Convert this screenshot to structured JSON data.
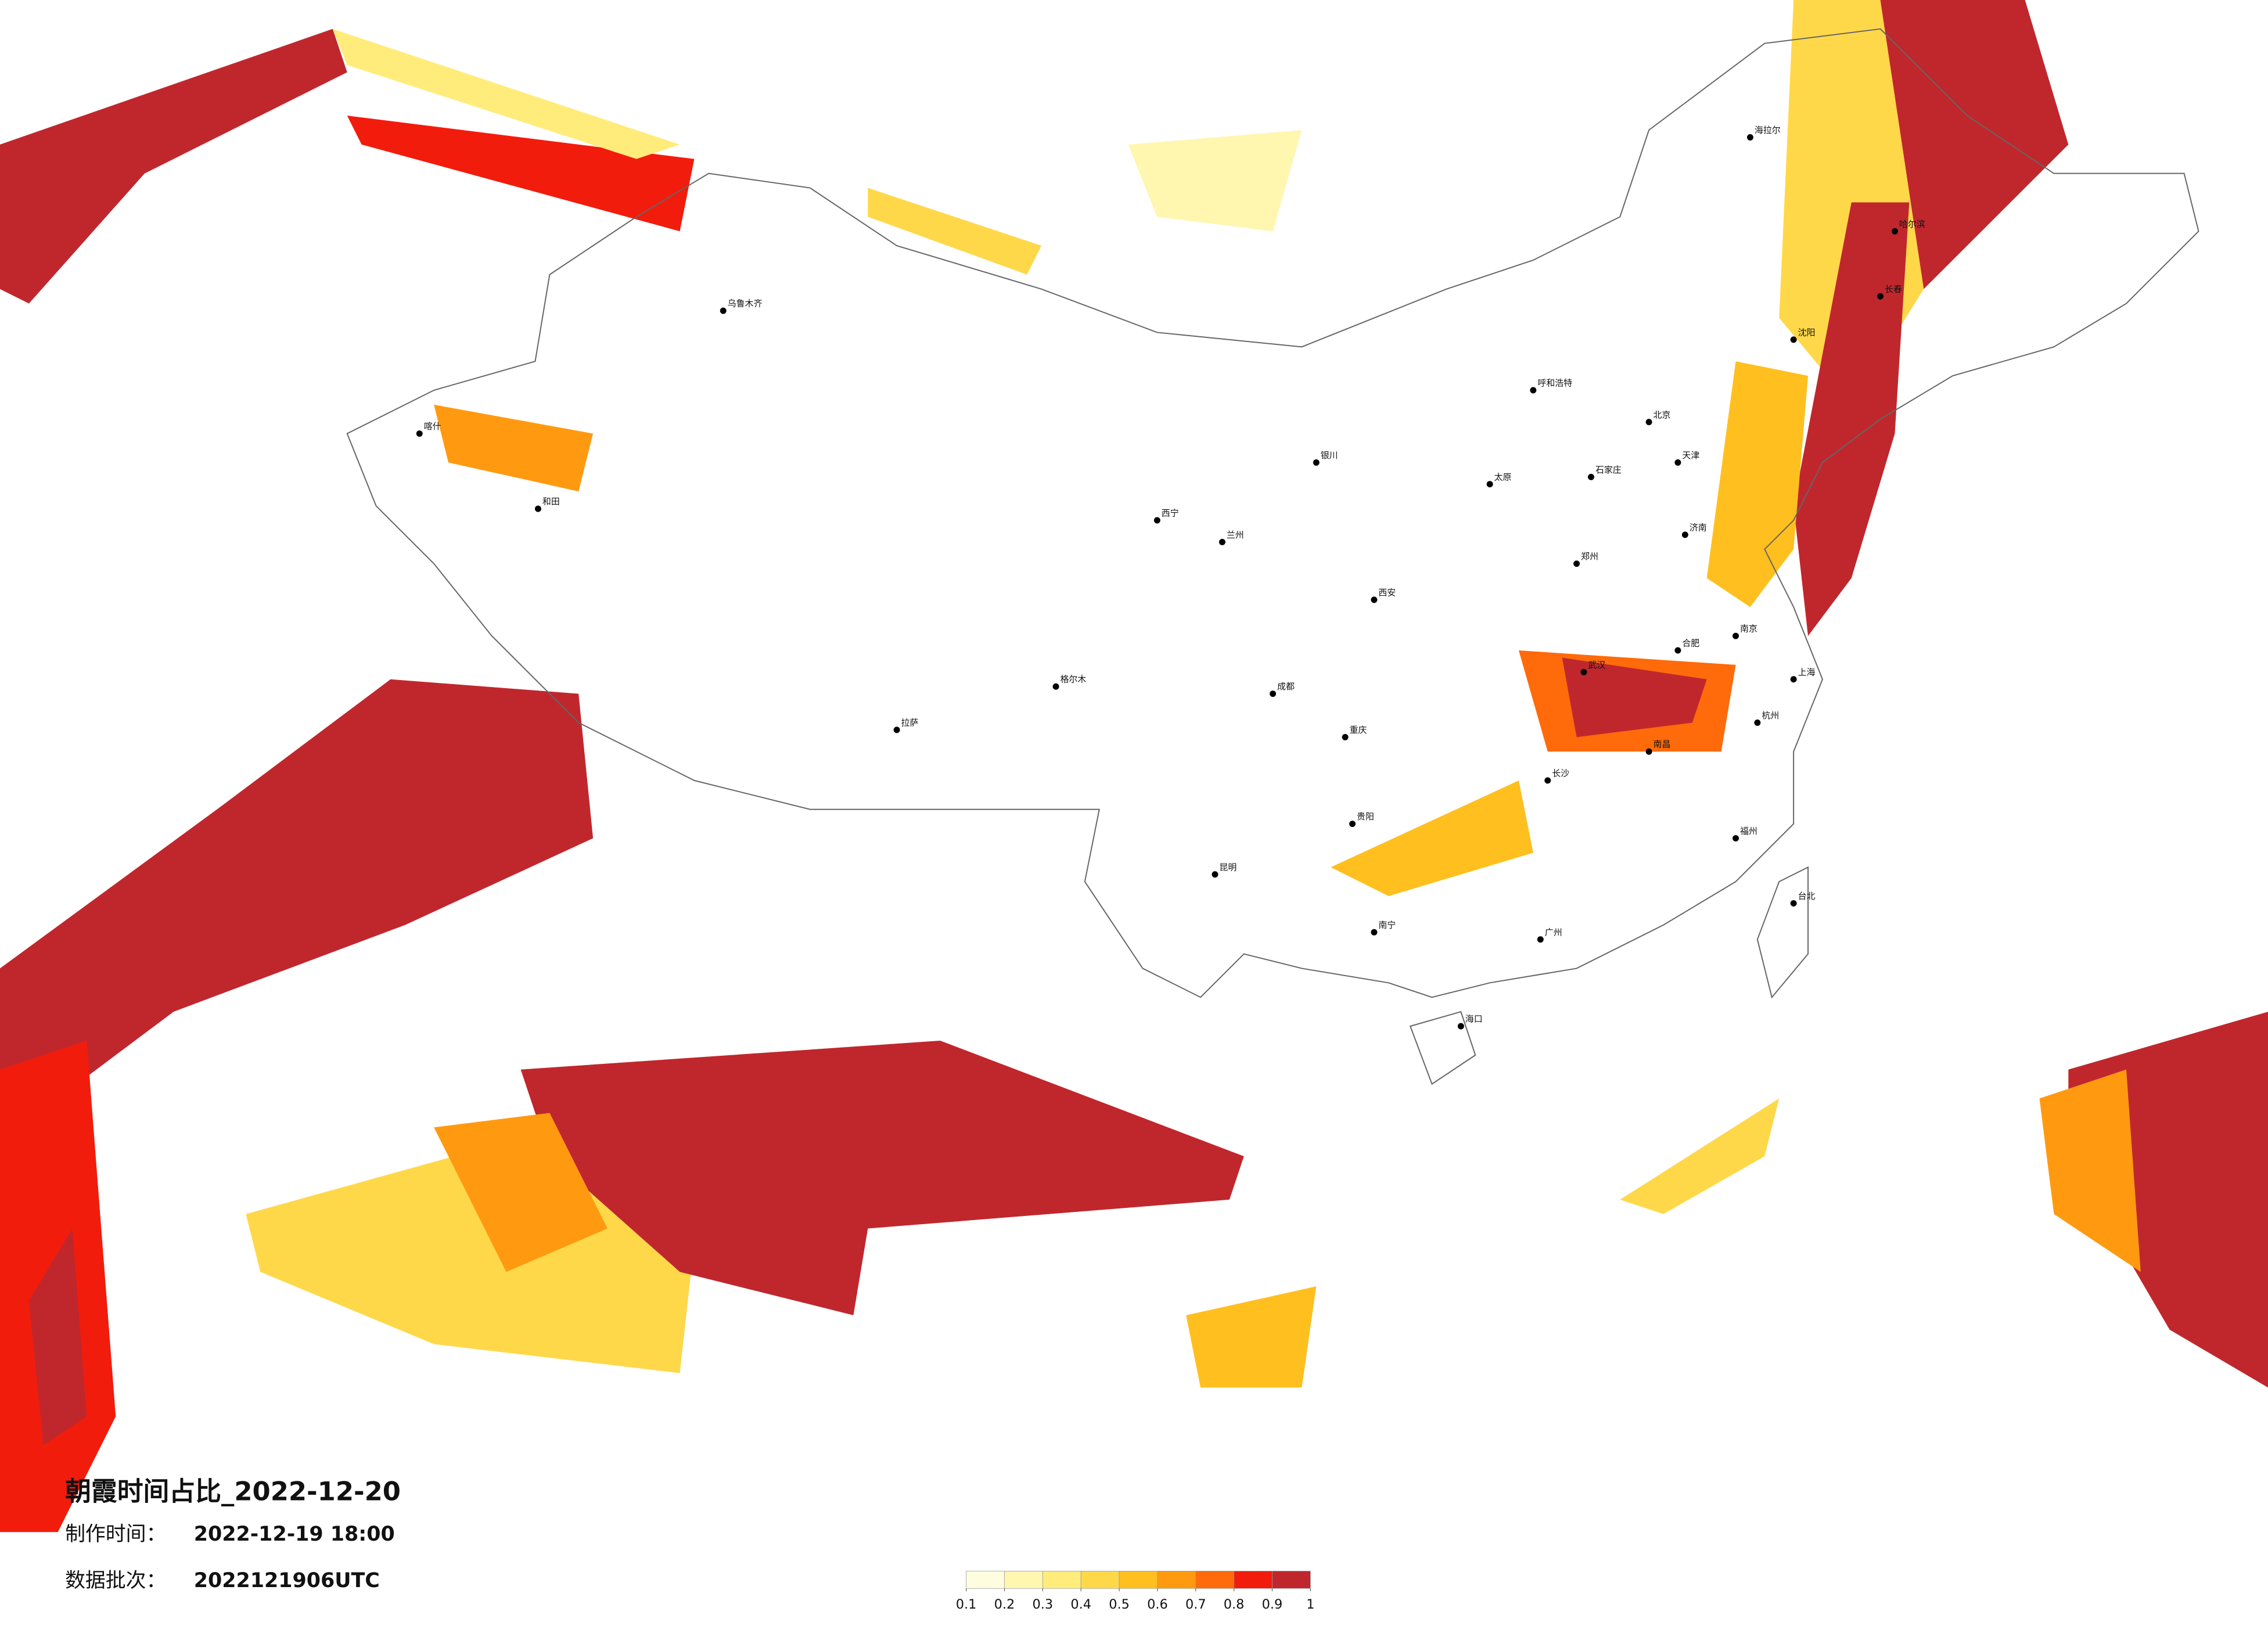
{
  "map": {
    "title": "朝霞时间占比_2022-12-20",
    "made_label": "制作时间：",
    "made_value": "2022-12-19 18:00",
    "batch_label": "数据批次：",
    "batch_value": "2022121906UTC",
    "cities": [
      "北京",
      "天津",
      "石家庄",
      "太原",
      "呼和浩特",
      "沈阳",
      "长春",
      "哈尔滨",
      "济南",
      "郑州",
      "西安",
      "兰州",
      "银川",
      "西宁",
      "乌鲁木齐",
      "拉萨",
      "成都",
      "重庆",
      "贵阳",
      "昆明",
      "南宁",
      "广州",
      "海口",
      "长沙",
      "武汉",
      "南昌",
      "合肥",
      "南京",
      "上海",
      "杭州",
      "福州",
      "台北",
      "喀什",
      "和田",
      "格尔木",
      "海拉尔"
    ],
    "colorbar": {
      "ticks": [
        0.1,
        0.2,
        0.3,
        0.4,
        0.5,
        0.6,
        0.7,
        0.8,
        0.9,
        1
      ],
      "colors": [
        "#fffde0",
        "#fff6b0",
        "#ffec7a",
        "#ffd84a",
        "#ffbf1f",
        "#ff9a10",
        "#ff6a0a",
        "#f21c0c",
        "#c0272d"
      ]
    }
  }
}
